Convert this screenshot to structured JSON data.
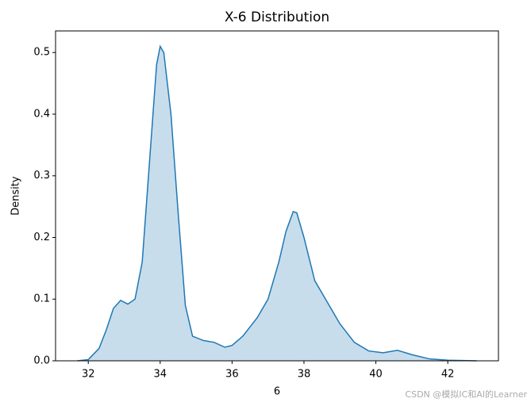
{
  "chart_data": {
    "type": "kde",
    "title": "X-6 Distribution",
    "xlabel": "6",
    "ylabel": "Density",
    "x": [
      31.7,
      32.0,
      32.3,
      32.5,
      32.7,
      32.9,
      33.1,
      33.3,
      33.5,
      33.7,
      33.9,
      34.0,
      34.1,
      34.3,
      34.5,
      34.7,
      34.9,
      35.2,
      35.5,
      35.8,
      36.0,
      36.3,
      36.7,
      37.0,
      37.3,
      37.5,
      37.7,
      37.8,
      38.0,
      38.3,
      38.6,
      39.0,
      39.4,
      39.8,
      40.2,
      40.6,
      41.0,
      41.5,
      42.0,
      42.8
    ],
    "values": [
      0,
      0.002,
      0.02,
      0.05,
      0.085,
      0.098,
      0.092,
      0.1,
      0.16,
      0.32,
      0.48,
      0.51,
      0.5,
      0.4,
      0.24,
      0.09,
      0.04,
      0.033,
      0.03,
      0.022,
      0.025,
      0.04,
      0.07,
      0.1,
      0.16,
      0.21,
      0.242,
      0.24,
      0.2,
      0.13,
      0.1,
      0.06,
      0.03,
      0.016,
      0.013,
      0.017,
      0.01,
      0.003,
      0.001,
      0
    ],
    "color": "#1f77b4",
    "xlim": [
      31.09,
      43.41
    ],
    "xticks": [
      32,
      34,
      36,
      38,
      40,
      42
    ],
    "ylim": [
      0,
      0.535
    ],
    "yticks": [
      {
        "value": 0,
        "label": "0.0"
      },
      {
        "value": 0.1,
        "label": "0.1"
      },
      {
        "value": 0.2,
        "label": "0.2"
      },
      {
        "value": 0.3,
        "label": "0.3"
      },
      {
        "value": 0.4,
        "label": "0.4"
      },
      {
        "value": 0.5,
        "label": "0.5"
      }
    ],
    "watermark": "CSDN @模拟IC和AI的Learner"
  }
}
